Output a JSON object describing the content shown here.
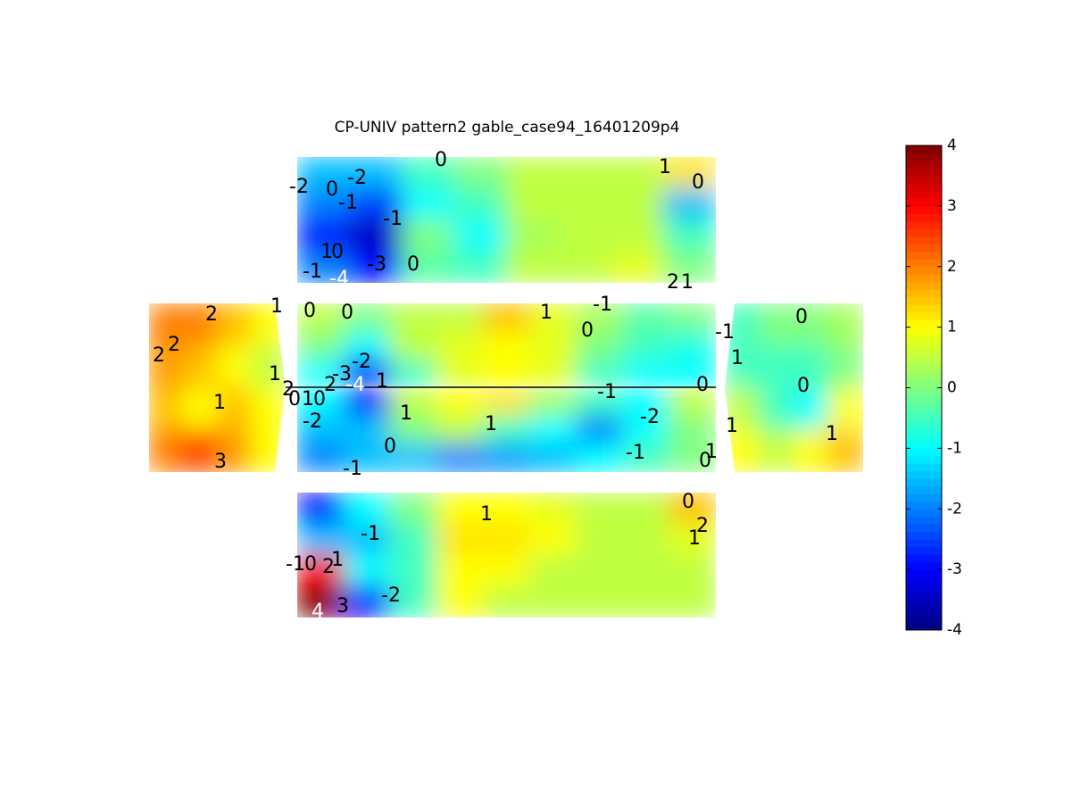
{
  "chart_data": {
    "type": "contour",
    "title": "CP-UNIV pattern2 gable_case94_16401209p4",
    "colormap": "jet",
    "clim": [
      -4,
      4
    ],
    "cticks": [
      -4,
      -3,
      -2,
      -1,
      0,
      1,
      2,
      3,
      4
    ],
    "panels": [
      {
        "values": [
          [
            -1.5,
            -1.5,
            -0.5,
            0,
            0.5,
            0.5,
            0.5,
            1.2
          ],
          [
            -2,
            -2.5,
            -1,
            -0.5,
            0.5,
            0.5,
            0.5,
            -1.5
          ],
          [
            -3,
            -3.5,
            0,
            -1,
            0.3,
            0.5,
            0.5,
            -0.5
          ],
          [
            -2,
            -3,
            -0.3,
            -0.5,
            0.5,
            0.5,
            0.8,
            0
          ]
        ],
        "contour_labels": [
          0,
          -2,
          0,
          -2,
          -1,
          -1,
          1,
          0,
          -3,
          0,
          -1,
          -4,
          1,
          0,
          2,
          1
        ]
      },
      {
        "values": [
          [
            0.5,
            0,
            0.5,
            0.5,
            1.5,
            0.8,
            0.3,
            -0.3,
            0
          ],
          [
            0,
            -1,
            0.5,
            0.8,
            1,
            0.8,
            0,
            -0.5,
            -0.8
          ],
          [
            -1,
            -3,
            -0.5,
            0.8,
            1,
            0.8,
            -0.5,
            -1,
            -1
          ]
        ],
        "contour_labels": [
          0,
          0,
          1,
          -1,
          0,
          -2,
          -3,
          -4,
          1,
          0,
          2
        ]
      },
      {
        "values": [
          [
            -1,
            -3,
            0.5,
            1,
            1.2,
            0.3,
            -0.5,
            -1,
            0.5
          ],
          [
            -1.5,
            -1.5,
            0,
            0.5,
            -0.5,
            -1,
            -2,
            -1,
            0
          ],
          [
            -2,
            -1.5,
            -1.5,
            -2,
            -1.8,
            -1.5,
            -1,
            -0.5,
            0
          ]
        ],
        "contour_labels": [
          1,
          1,
          -1,
          -2,
          -1,
          0,
          -2,
          -1,
          0,
          1,
          0,
          1,
          0
        ]
      },
      {
        "values": [
          [
            -3,
            -1,
            0,
            1,
            1,
            0.8,
            0.5,
            0.5,
            1.5
          ],
          [
            -1.5,
            -1.5,
            -0.5,
            1.2,
            1.2,
            1,
            0.5,
            0.5,
            0.8
          ],
          [
            3,
            -1,
            -0.5,
            1,
            1,
            0.5,
            0.5,
            0.5,
            0.5
          ],
          [
            4,
            -3,
            -0.5,
            1,
            0.5,
            0.5,
            0.5,
            0.5,
            0.5
          ]
        ],
        "contour_labels": [
          0,
          2,
          1,
          1,
          -1,
          -1,
          0,
          2,
          1,
          -2,
          3,
          4
        ]
      },
      {
        "values": [
          [
            2,
            2,
            1.5,
            1
          ],
          [
            1.8,
            1.5,
            1,
            0.5
          ],
          [
            1.5,
            1,
            1.5,
            1
          ],
          [
            2,
            2.5,
            1.8,
            1
          ]
        ],
        "contour_labels": [
          2,
          2,
          2,
          1,
          1,
          1,
          3,
          2
        ]
      },
      {
        "values": [
          [
            -0.5,
            0,
            0,
            0.3
          ],
          [
            -0.5,
            -0.5,
            -0.5,
            0
          ],
          [
            0.5,
            -0.5,
            -1,
            1
          ],
          [
            1,
            0.5,
            1,
            1.5
          ]
        ],
        "contour_labels": [
          0,
          -1,
          1,
          0,
          1,
          1
        ]
      }
    ]
  }
}
